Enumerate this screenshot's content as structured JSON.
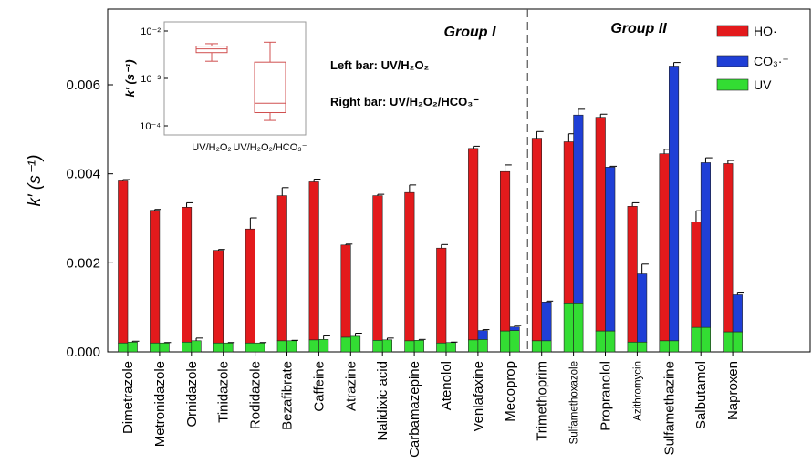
{
  "chart_data": {
    "type": "bar",
    "ylabel": "k′ (s⁻¹)",
    "ylim": [
      0,
      0.0077
    ],
    "yticks": [
      "0.000",
      "0.002",
      "0.004",
      "0.006"
    ],
    "yticks_values": [
      0,
      0.002,
      0.004,
      0.006
    ],
    "categories": [
      "Dimetrazole",
      "Metronidazole",
      "Ornidazole",
      "Tinidazole",
      "Rodidazole",
      "Bezafibrate",
      "Caffeine",
      "Atrazine",
      "Nalidixic acid",
      "Carbamazepine",
      "Atenolol",
      "Venlafaxine",
      "Mecoprop",
      "Trimethoprim",
      "Sulfamethoxazole",
      "Propranolol",
      "Azithromycin",
      "Sulfamethazine",
      "Salbutamol",
      "Naproxen"
    ],
    "small_label_categories": [
      "Sulfamethoxazole",
      "Azithromycin"
    ],
    "groups": [
      {
        "label": "Group I",
        "from": 0,
        "to": 12
      },
      {
        "label": "Group II",
        "from": 13,
        "to": 19
      }
    ],
    "annotations": {
      "left_bar": "Left bar: UV/H₂O₂",
      "right_bar": "Right bar: UV/H₂O₂/HCO₃⁻"
    },
    "legend": {
      "position": "top-right",
      "entries": [
        {
          "name": "HO·",
          "color": "#e31a1c"
        },
        {
          "name": "CO₃·⁻",
          "color": "#1f3fd6"
        },
        {
          "name": "UV",
          "color": "#33dd33"
        }
      ]
    },
    "left_bar": {
      "condition": "UV/H₂O₂",
      "uv": [
        0.0002,
        0.0002,
        0.00022,
        0.0002,
        0.0002,
        0.00025,
        0.00027,
        0.00033,
        0.00026,
        0.00025,
        0.0002,
        0.00027,
        0.00047,
        0.00025,
        0.0011,
        0.00047,
        0.00022,
        0.00025,
        0.00055,
        0.00045
      ],
      "ho": [
        0.00364,
        0.00298,
        0.00303,
        0.00208,
        0.00256,
        0.00326,
        0.00355,
        0.00207,
        0.00325,
        0.00333,
        0.00213,
        0.0043,
        0.00358,
        0.00455,
        0.00362,
        0.0048,
        0.00305,
        0.0042,
        0.00237,
        0.00378
      ],
      "err": [
        3e-05,
        2e-05,
        0.0001,
        2e-05,
        0.00025,
        0.00018,
        6e-05,
        2e-05,
        3e-05,
        0.00017,
        8e-05,
        5e-05,
        0.00015,
        0.00015,
        0.00018,
        7e-05,
        8e-05,
        0.0001,
        0.00025,
        7e-05
      ]
    },
    "right_bar": {
      "condition": "UV/H₂O₂/HCO₃⁻",
      "uv": [
        0.00022,
        0.0002,
        0.00025,
        0.0002,
        0.0002,
        0.00025,
        0.00028,
        0.00035,
        0.00027,
        0.00026,
        0.00021,
        0.00028,
        0.00048,
        0.00025,
        0.0011,
        0.00047,
        0.00022,
        0.00025,
        0.00055,
        0.00045
      ],
      "co3": [
        0.0,
        0.0,
        0.0,
        0.0,
        0.0,
        0.0,
        0.0,
        0.0,
        0.0,
        0.0,
        0.0,
        0.0002,
        8e-05,
        0.00087,
        0.00422,
        0.00368,
        0.00153,
        0.00617,
        0.0037,
        0.00083
      ],
      "err": [
        2e-05,
        1e-05,
        6e-05,
        1e-05,
        1e-05,
        1e-05,
        8e-05,
        7e-05,
        4e-05,
        2e-05,
        1e-05,
        2e-05,
        3e-05,
        2e-05,
        0.00013,
        2e-05,
        0.00022,
        8e-05,
        0.00011,
        6e-05
      ]
    },
    "inset": {
      "type": "box",
      "ylabel": "k′ (s⁻¹)",
      "ylim_log": [
        0.0001,
        0.01
      ],
      "yticks": [
        "10⁻²",
        "10⁻³",
        "10⁻⁴"
      ],
      "yticks_values": [
        0.01,
        0.001,
        0.0001
      ],
      "categories": [
        "UV/H₂O₂",
        "UV/H₂O₂/HCO₃⁻"
      ],
      "boxes": [
        {
          "min": 0.0023,
          "q1": 0.0035,
          "median": 0.0042,
          "q3": 0.0048,
          "max": 0.0054
        },
        {
          "min": 0.00013,
          "q1": 0.00019,
          "median": 0.0003,
          "q3": 0.0022,
          "max": 0.0058
        }
      ]
    }
  }
}
